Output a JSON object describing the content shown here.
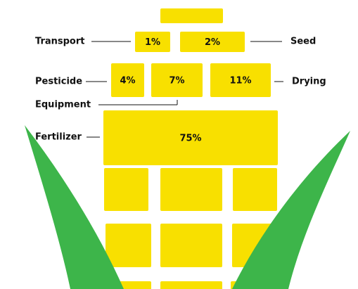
{
  "chart_data": {
    "type": "infographic",
    "categories": [
      "Transport",
      "Seed",
      "Pesticide",
      "Equipment",
      "Drying",
      "Fertilizer"
    ],
    "values": [
      1,
      2,
      4,
      7,
      11,
      75
    ],
    "value_labels": [
      "1%",
      "2%",
      "4%",
      "7%",
      "11%",
      "75%"
    ],
    "color": "#f8e000",
    "leaf_color": "#3db54a"
  }
}
